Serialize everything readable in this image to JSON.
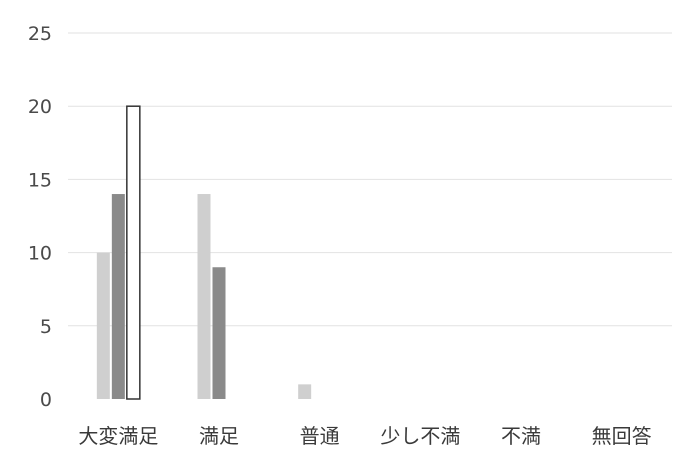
{
  "chart_data": {
    "type": "bar",
    "title": "",
    "xlabel": "",
    "ylabel": "",
    "categories": [
      "大変満足",
      "満足",
      "普通",
      "少し不満",
      "不満",
      "無回答"
    ],
    "series": [
      {
        "values": [
          10,
          14,
          1,
          0,
          0,
          0
        ],
        "color": "#cfcfcf"
      },
      {
        "values": [
          14,
          9,
          0,
          0,
          0,
          0
        ],
        "color": "#8a8a8a"
      },
      {
        "values": [
          20,
          0,
          0,
          0,
          0,
          0
        ],
        "color": "#ffffff",
        "stroke": "#333333"
      }
    ],
    "ylim": [
      0,
      25
    ],
    "yticks": [
      "0",
      "5",
      "10",
      "15",
      "20",
      "25"
    ],
    "grid": true,
    "legend": "none"
  }
}
